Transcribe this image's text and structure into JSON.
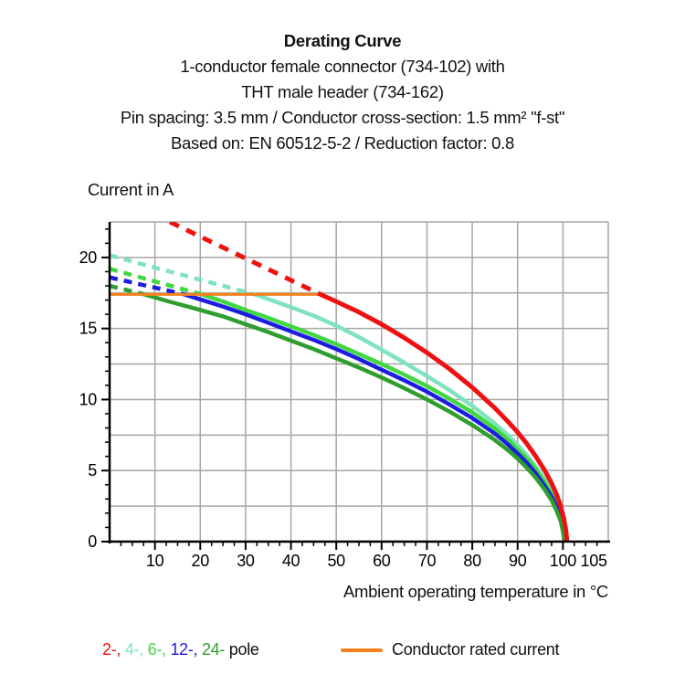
{
  "header": {
    "title": "Derating Curve",
    "lines": [
      "1-conductor female connector (734-102) with",
      "THT male header (734-162)",
      "Pin spacing: 3.5 mm / Conductor cross-section: 1.5 mm² \"f-st\"",
      "Based on: EN 60512-5-2 / Reduction factor: 0.8"
    ]
  },
  "chart_data": {
    "type": "line",
    "title": "Derating Curve",
    "xlabel": "Ambient operating temperature in °C",
    "ylabel": "Current in A",
    "xlim": [
      0,
      110
    ],
    "ylim": [
      0,
      22.5
    ],
    "x_major_ticks": [
      10,
      20,
      30,
      40,
      50,
      60,
      70,
      80,
      90,
      100
    ],
    "x_extra_label": {
      "value": 106.8,
      "label": "105"
    },
    "x_minor_step": 2.5,
    "y_major_ticks": [
      0,
      5,
      10,
      15,
      20
    ],
    "y_minor_step": 1,
    "grid": {
      "x_step": 10,
      "y_step": 2.5,
      "color": "#a6a6a6"
    },
    "axis_color": "#000000",
    "legend_position": "bottom",
    "rated_current": {
      "y": 17.4,
      "x_start": 0,
      "x_end": 46.5,
      "color": "#f5821f",
      "label": "Conductor rated current"
    },
    "series": [
      {
        "name": "4-pole",
        "color": "#7fe3bd",
        "dashed": [
          [
            0,
            20.15
          ],
          [
            32,
            17.4
          ]
        ],
        "solid": [
          [
            32,
            17.4
          ],
          [
            36,
            16.95
          ],
          [
            40,
            16.5
          ],
          [
            45,
            15.9
          ],
          [
            50,
            15.2
          ],
          [
            55,
            14.4
          ],
          [
            60,
            13.5
          ],
          [
            65,
            12.6
          ],
          [
            70,
            11.65
          ],
          [
            75,
            10.65
          ],
          [
            80,
            9.55
          ],
          [
            85,
            8.3
          ],
          [
            88,
            7.45
          ],
          [
            90,
            6.8
          ],
          [
            92,
            6.1
          ],
          [
            94,
            5.3
          ],
          [
            96,
            4.35
          ],
          [
            97.5,
            3.5
          ],
          [
            98.5,
            2.8
          ],
          [
            99.5,
            1.95
          ],
          [
            100.2,
            1.05
          ],
          [
            100.6,
            0
          ]
        ]
      },
      {
        "name": "6-pole",
        "color": "#3fd83f",
        "dashed": [
          [
            0,
            19.2
          ],
          [
            20.3,
            17.4
          ]
        ],
        "solid": [
          [
            20.3,
            17.4
          ],
          [
            25,
            16.9
          ],
          [
            30,
            16.3
          ],
          [
            35,
            15.75
          ],
          [
            40,
            15.15
          ],
          [
            45,
            14.55
          ],
          [
            50,
            13.9
          ],
          [
            55,
            13.2
          ],
          [
            60,
            12.5
          ],
          [
            65,
            11.75
          ],
          [
            70,
            10.95
          ],
          [
            75,
            10.05
          ],
          [
            80,
            9.1
          ],
          [
            85,
            7.95
          ],
          [
            88,
            7.15
          ],
          [
            90,
            6.5
          ],
          [
            92,
            5.85
          ],
          [
            94,
            5.1
          ],
          [
            96,
            4.15
          ],
          [
            97.5,
            3.35
          ],
          [
            98.5,
            2.65
          ],
          [
            99.5,
            1.8
          ],
          [
            100.1,
            0.95
          ],
          [
            100.5,
            0
          ]
        ]
      },
      {
        "name": "12-pole",
        "color": "#1d1de0",
        "dashed": [
          [
            0,
            18.6
          ],
          [
            16.5,
            17.4
          ]
        ],
        "solid": [
          [
            16.5,
            17.4
          ],
          [
            20,
            17.05
          ],
          [
            25,
            16.55
          ],
          [
            30,
            16.0
          ],
          [
            35,
            15.4
          ],
          [
            40,
            14.8
          ],
          [
            45,
            14.2
          ],
          [
            50,
            13.55
          ],
          [
            55,
            12.85
          ],
          [
            60,
            12.1
          ],
          [
            65,
            11.35
          ],
          [
            70,
            10.55
          ],
          [
            75,
            9.65
          ],
          [
            80,
            8.7
          ],
          [
            85,
            7.6
          ],
          [
            88,
            6.8
          ],
          [
            90,
            6.2
          ],
          [
            92,
            5.55
          ],
          [
            94,
            4.8
          ],
          [
            96,
            3.9
          ],
          [
            97.5,
            3.15
          ],
          [
            98.5,
            2.5
          ],
          [
            99.5,
            1.65
          ],
          [
            100,
            0.85
          ],
          [
            100.4,
            0
          ]
        ]
      },
      {
        "name": "24-pole",
        "color": "#2f9e2f",
        "dashed": [
          [
            0,
            18.0
          ],
          [
            7.7,
            17.4
          ]
        ],
        "solid": [
          [
            7.7,
            17.4
          ],
          [
            12,
            17.0
          ],
          [
            16,
            16.65
          ],
          [
            20,
            16.3
          ],
          [
            25,
            15.85
          ],
          [
            30,
            15.3
          ],
          [
            35,
            14.75
          ],
          [
            40,
            14.15
          ],
          [
            45,
            13.55
          ],
          [
            50,
            12.9
          ],
          [
            55,
            12.25
          ],
          [
            60,
            11.55
          ],
          [
            65,
            10.8
          ],
          [
            70,
            10.0
          ],
          [
            75,
            9.15
          ],
          [
            80,
            8.2
          ],
          [
            85,
            7.15
          ],
          [
            88,
            6.4
          ],
          [
            90,
            5.85
          ],
          [
            92,
            5.2
          ],
          [
            94,
            4.5
          ],
          [
            96,
            3.65
          ],
          [
            97.5,
            2.9
          ],
          [
            98.5,
            2.25
          ],
          [
            99.5,
            1.45
          ],
          [
            100,
            0.7
          ],
          [
            100.3,
            0
          ]
        ]
      },
      {
        "name": "2-pole",
        "color": "#ee1111",
        "dashed": [
          [
            13.3,
            22.5
          ],
          [
            46.5,
            17.4
          ]
        ],
        "solid": [
          [
            46.5,
            17.4
          ],
          [
            50,
            16.9
          ],
          [
            55,
            16.15
          ],
          [
            60,
            15.3
          ],
          [
            65,
            14.35
          ],
          [
            70,
            13.3
          ],
          [
            75,
            12.15
          ],
          [
            80,
            10.85
          ],
          [
            85,
            9.4
          ],
          [
            88,
            8.4
          ],
          [
            90,
            7.7
          ],
          [
            92,
            6.9
          ],
          [
            94,
            6.0
          ],
          [
            96,
            5.0
          ],
          [
            97.5,
            4.1
          ],
          [
            98.5,
            3.4
          ],
          [
            99.5,
            2.5
          ],
          [
            100.2,
            1.6
          ],
          [
            100.7,
            0.7
          ],
          [
            100.9,
            0
          ]
        ]
      }
    ]
  },
  "legend": {
    "pole_items": [
      {
        "label": "2-,",
        "color": "#ee1111"
      },
      {
        "label": "4-,",
        "color": "#7fe3bd"
      },
      {
        "label": "6-,",
        "color": "#3fd83f"
      },
      {
        "label": "12-,",
        "color": "#1d1de0"
      },
      {
        "label": "24-",
        "color": "#2f9e2f"
      }
    ],
    "pole_suffix": "pole",
    "rated": {
      "label": "Conductor rated current",
      "color": "#f5821f"
    }
  }
}
